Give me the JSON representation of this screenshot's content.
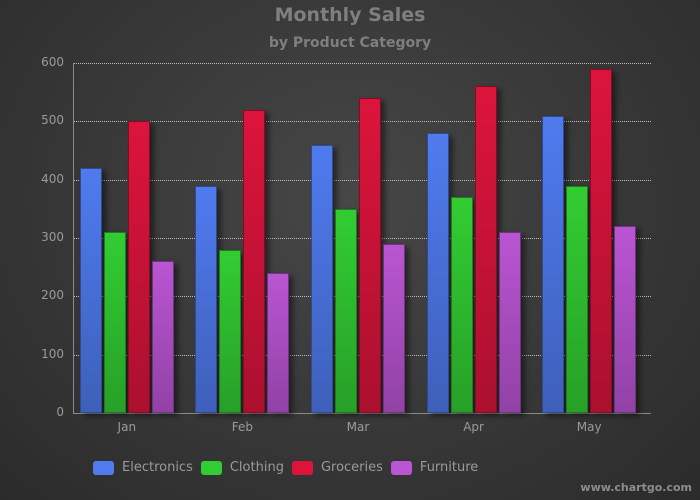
{
  "chart_data": {
    "type": "bar",
    "title": "Monthly Sales",
    "subtitle": "by Product Category",
    "xlabel": "",
    "ylabel": "",
    "categories": [
      "Jan",
      "Feb",
      "Mar",
      "Apr",
      "May"
    ],
    "series": [
      {
        "name": "Electronics",
        "color": "#4f7bef",
        "values": [
          420,
          390,
          460,
          480,
          510
        ]
      },
      {
        "name": "Clothing",
        "color": "#32cd32",
        "values": [
          310,
          280,
          350,
          370,
          390
        ]
      },
      {
        "name": "Groceries",
        "color": "#dc143c",
        "values": [
          500,
          520,
          540,
          560,
          590
        ]
      },
      {
        "name": "Furniture",
        "color": "#ba55d3",
        "values": [
          260,
          240,
          290,
          310,
          320
        ]
      }
    ],
    "ylim": [
      0,
      600
    ],
    "yticks": [
      0,
      100,
      200,
      300,
      400,
      500,
      600
    ],
    "grid": true,
    "legend_position": "bottom"
  },
  "watermark": "www.chartgo.com"
}
